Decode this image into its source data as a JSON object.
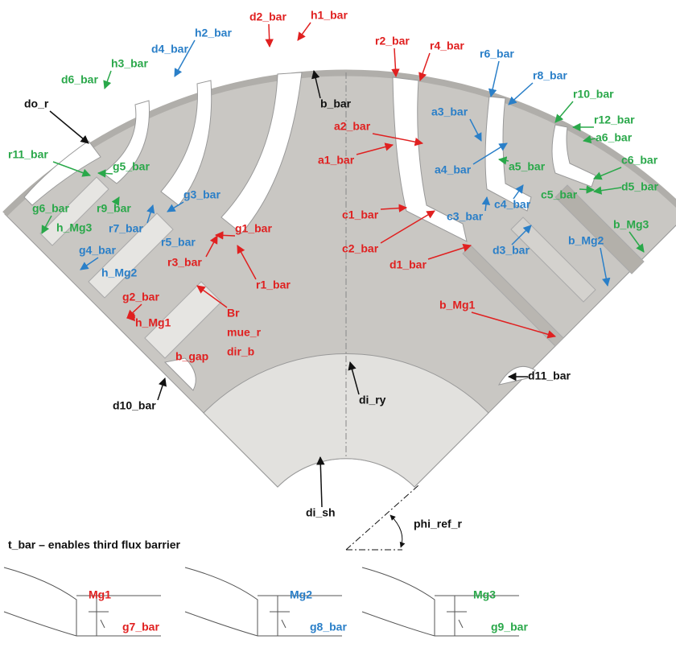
{
  "labels": [
    {
      "text": "d2_bar",
      "color": "#e02020"
    },
    {
      "text": "h1_bar",
      "color": "#e02020"
    },
    {
      "text": "r2_bar",
      "color": "#e02020"
    },
    {
      "text": "r4_bar",
      "color": "#e02020"
    },
    {
      "text": "a2_bar",
      "color": "#e02020"
    },
    {
      "text": "a1_bar",
      "color": "#e02020"
    },
    {
      "text": "c1_bar",
      "color": "#e02020"
    },
    {
      "text": "c2_bar",
      "color": "#e02020"
    },
    {
      "text": "d1_bar",
      "color": "#e02020"
    },
    {
      "text": "b_Mg1",
      "color": "#e02020"
    },
    {
      "text": "g1_bar",
      "color": "#e02020"
    },
    {
      "text": "r3_bar",
      "color": "#e02020"
    },
    {
      "text": "r1_bar",
      "color": "#e02020"
    },
    {
      "text": "g2_bar",
      "color": "#e02020"
    },
    {
      "text": "h_Mg1",
      "color": "#e02020"
    },
    {
      "text": "Br",
      "color": "#e02020"
    },
    {
      "text": "mue_r",
      "color": "#e02020"
    },
    {
      "text": "dir_b",
      "color": "#e02020"
    },
    {
      "text": "b_gap",
      "color": "#e02020"
    },
    {
      "text": "Mg1",
      "color": "#e02020"
    },
    {
      "text": "g7_bar",
      "color": "#e02020"
    },
    {
      "text": "h2_bar",
      "color": "#2a7fc8"
    },
    {
      "text": "d4_bar",
      "color": "#2a7fc8"
    },
    {
      "text": "r6_bar",
      "color": "#2a7fc8"
    },
    {
      "text": "r8_bar",
      "color": "#2a7fc8"
    },
    {
      "text": "a3_bar",
      "color": "#2a7fc8"
    },
    {
      "text": "a4_bar",
      "color": "#2a7fc8"
    },
    {
      "text": "c4_bar",
      "color": "#2a7fc8"
    },
    {
      "text": "c3_bar",
      "color": "#2a7fc8"
    },
    {
      "text": "d3_bar",
      "color": "#2a7fc8"
    },
    {
      "text": "b_Mg2",
      "color": "#2a7fc8"
    },
    {
      "text": "g3_bar",
      "color": "#2a7fc8"
    },
    {
      "text": "r7_bar",
      "color": "#2a7fc8"
    },
    {
      "text": "r5_bar",
      "color": "#2a7fc8"
    },
    {
      "text": "g4_bar",
      "color": "#2a7fc8"
    },
    {
      "text": "h_Mg2",
      "color": "#2a7fc8"
    },
    {
      "text": "Mg2",
      "color": "#2a7fc8"
    },
    {
      "text": "g8_bar",
      "color": "#2a7fc8"
    },
    {
      "text": "h3_bar",
      "color": "#2aa84a"
    },
    {
      "text": "d6_bar",
      "color": "#2aa84a"
    },
    {
      "text": "r10_bar",
      "color": "#2aa84a"
    },
    {
      "text": "r12_bar",
      "color": "#2aa84a"
    },
    {
      "text": "a6_bar",
      "color": "#2aa84a"
    },
    {
      "text": "c6_bar",
      "color": "#2aa84a"
    },
    {
      "text": "a5_bar",
      "color": "#2aa84a"
    },
    {
      "text": "c5_bar",
      "color": "#2aa84a"
    },
    {
      "text": "d5_bar",
      "color": "#2aa84a"
    },
    {
      "text": "b_Mg3",
      "color": "#2aa84a"
    },
    {
      "text": "r11_bar",
      "color": "#2aa84a"
    },
    {
      "text": "g5_bar",
      "color": "#2aa84a"
    },
    {
      "text": "r9_bar",
      "color": "#2aa84a"
    },
    {
      "text": "g6_bar",
      "color": "#2aa84a"
    },
    {
      "text": "h_Mg3",
      "color": "#2aa84a"
    },
    {
      "text": "Mg3",
      "color": "#2aa84a"
    },
    {
      "text": "g9_bar",
      "color": "#2aa84a"
    },
    {
      "text": "do_r",
      "color": "#111111"
    },
    {
      "text": "b_bar",
      "color": "#111111"
    },
    {
      "text": "di_ry",
      "color": "#111111"
    },
    {
      "text": "d10_bar",
      "color": "#111111"
    },
    {
      "text": "d11_bar",
      "color": "#111111"
    },
    {
      "text": "di_sh",
      "color": "#111111"
    },
    {
      "text": "phi_ref_r",
      "color": "#111111"
    },
    {
      "text": "t_bar – enables third flux barrier",
      "color": "#111111"
    }
  ]
}
